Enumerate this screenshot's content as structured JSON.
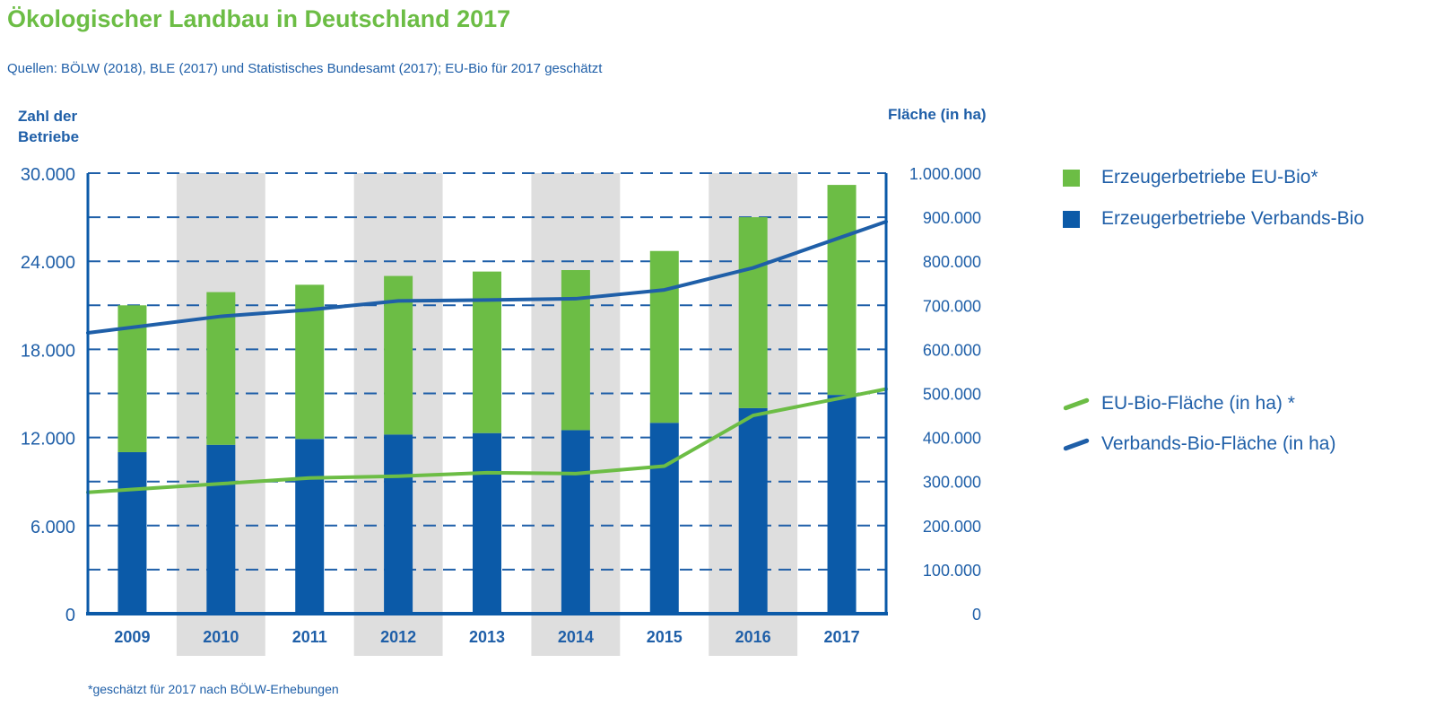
{
  "header": {
    "title": "Ökologischer Landbau in Deutschland 2017",
    "subtitle": "Quellen: BÖLW (2018), BLE (2017) und Statistisches Bundesamt (2017); EU-Bio für 2017 geschätzt",
    "footnote": "*geschätzt für 2017 nach BÖLW-Erhebungen"
  },
  "legend": {
    "items": [
      {
        "label": "Erzeugerbetriebe EU-Bio*",
        "color": "#6cbd45",
        "kind": "box"
      },
      {
        "label": "Erzeugerbetriebe Verbands-Bio",
        "color": "#0b5aa8",
        "kind": "box"
      },
      {
        "label": "EU-Bio-Fläche (in ha) *",
        "color": "#6cbd45",
        "kind": "line"
      },
      {
        "label": "Verbands-Bio-Fläche (in ha)",
        "color": "#1f5fa8",
        "kind": "line"
      }
    ]
  },
  "chart_data": {
    "type": "bar",
    "title": "Ökologischer Landbau in Deutschland 2017",
    "ylabel_left": "Zahl der Betriebe",
    "ylabel_right": "Fläche (in ha)",
    "categories": [
      "2009",
      "2010",
      "2011",
      "2012",
      "2013",
      "2014",
      "2015",
      "2016",
      "2017"
    ],
    "ylim_left": [
      0,
      30000
    ],
    "ylim_right": [
      0,
      1000000
    ],
    "yticks_left": [
      "0",
      "6.000",
      "12.000",
      "18.000",
      "24.000",
      "30.000"
    ],
    "yticks_right": [
      "0",
      "100.000",
      "200.000",
      "300.000",
      "400.000",
      "500.000",
      "600.000",
      "700.000",
      "800.000",
      "900.000",
      "1.000.000"
    ],
    "grid": true,
    "legend_position": "right",
    "bar_series": [
      {
        "name": "Erzeugerbetriebe Verbands-Bio",
        "color": "#0b5aa8",
        "values": [
          11000,
          11500,
          11900,
          12200,
          12300,
          12500,
          13000,
          14000,
          14900
        ]
      },
      {
        "name": "Erzeugerbetriebe EU-Bio*",
        "color": "#6cbd45",
        "values": [
          10000,
          10400,
          10500,
          10800,
          11000,
          10900,
          11700,
          13000,
          14300
        ]
      }
    ],
    "line_series": [
      {
        "name": "Verbands-Bio-Fläche (in ha)",
        "color": "#1f5fa8",
        "values": [
          650000,
          675000,
          690000,
          710000,
          712000,
          715000,
          735000,
          785000,
          855000
        ]
      },
      {
        "name": "EU-Bio-Fläche (in ha) *",
        "color": "#6cbd45",
        "values": [
          282000,
          295000,
          308000,
          312000,
          320000,
          318000,
          335000,
          450000,
          490000
        ]
      }
    ]
  }
}
